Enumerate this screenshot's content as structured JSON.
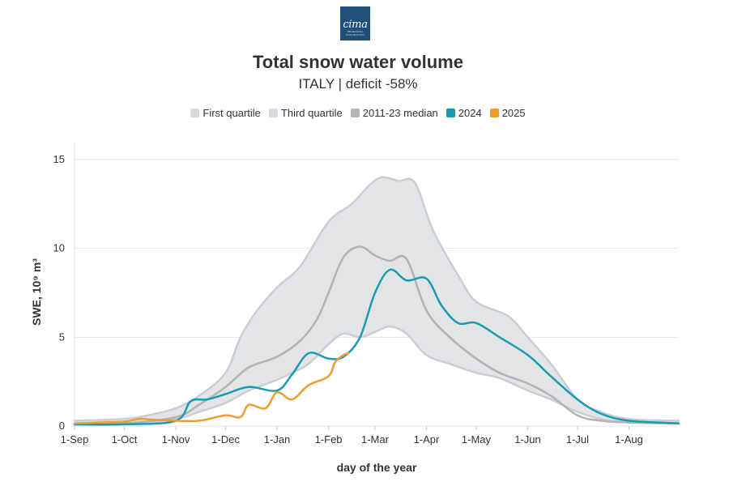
{
  "logo": {
    "text": "cima",
    "subtext": "RESEARCH FOUNDATION"
  },
  "chart_data": {
    "type": "area",
    "title": "Total snow water volume",
    "subtitle": "ITALY | deficit -58%",
    "xlabel": "day of the year",
    "ylabel": "SWE, 10⁹ m³",
    "ylim": [
      0,
      15
    ],
    "yticks": [
      0,
      5,
      10,
      15
    ],
    "xlim": [
      "1-Sep",
      "31-Aug"
    ],
    "xticks": [
      "1-Sep",
      "1-Oct",
      "1-Nov",
      "1-Dec",
      "1-Jan",
      "1-Feb",
      "1-Mar",
      "1-Apr",
      "1-May",
      "1-Jun",
      "1-Jul",
      "1-Aug"
    ],
    "grid": true,
    "legend_position": "top",
    "legend": [
      "First quartile",
      "Third quartile",
      "2011-23 median",
      "2024",
      "2025"
    ],
    "series": [
      {
        "name": "First quartile",
        "color": "#c8cdd6",
        "points": [
          [
            "1-Sep",
            0.05
          ],
          [
            "1-Oct",
            0.1
          ],
          [
            "1-Nov",
            0.4
          ],
          [
            "15-Nov",
            0.8
          ],
          [
            "1-Dec",
            1.3
          ],
          [
            "15-Dec",
            2.0
          ],
          [
            "1-Jan",
            2.6
          ],
          [
            "10-Jan",
            3.0
          ],
          [
            "20-Jan",
            3.5
          ],
          [
            "1-Feb",
            4.6
          ],
          [
            "10-Feb",
            5.2
          ],
          [
            "20-Feb",
            5.0
          ],
          [
            "1-Mar",
            5.3
          ],
          [
            "10-Mar",
            5.6
          ],
          [
            "20-Mar",
            5.2
          ],
          [
            "1-Apr",
            4.0
          ],
          [
            "15-Apr",
            3.5
          ],
          [
            "1-May",
            3.0
          ],
          [
            "15-May",
            2.7
          ],
          [
            "1-Jun",
            2.0
          ],
          [
            "15-Jun",
            1.5
          ],
          [
            "1-Jul",
            0.8
          ],
          [
            "15-Jul",
            0.4
          ],
          [
            "1-Aug",
            0.2
          ],
          [
            "31-Aug",
            0.15
          ]
        ]
      },
      {
        "name": "Third quartile",
        "color": "#c8cdd6",
        "points": [
          [
            "1-Sep",
            0.3
          ],
          [
            "1-Oct",
            0.4
          ],
          [
            "15-Oct",
            0.6
          ],
          [
            "1-Nov",
            1.0
          ],
          [
            "15-Nov",
            1.7
          ],
          [
            "1-Dec",
            3.0
          ],
          [
            "10-Dec",
            5.0
          ],
          [
            "20-Dec",
            6.5
          ],
          [
            "1-Jan",
            7.8
          ],
          [
            "15-Jan",
            9.0
          ],
          [
            "1-Feb",
            11.5
          ],
          [
            "15-Feb",
            12.5
          ],
          [
            "25-Feb",
            13.5
          ],
          [
            "5-Mar",
            14.0
          ],
          [
            "15-Mar",
            13.8
          ],
          [
            "25-Mar",
            13.7
          ],
          [
            "5-Apr",
            11.0
          ],
          [
            "20-Apr",
            8.5
          ],
          [
            "1-May",
            7.0
          ],
          [
            "20-May",
            6.2
          ],
          [
            "1-Jun",
            5.0
          ],
          [
            "15-Jun",
            3.5
          ],
          [
            "1-Jul",
            1.5
          ],
          [
            "15-Jul",
            0.8
          ],
          [
            "1-Aug",
            0.4
          ],
          [
            "31-Aug",
            0.3
          ]
        ]
      },
      {
        "name": "2011-23 median",
        "color": "#b3b3b3",
        "points": [
          [
            "1-Sep",
            0.1
          ],
          [
            "1-Oct",
            0.15
          ],
          [
            "1-Nov",
            0.5
          ],
          [
            "15-Nov",
            1.2
          ],
          [
            "1-Dec",
            2.2
          ],
          [
            "15-Dec",
            3.3
          ],
          [
            "1-Jan",
            3.9
          ],
          [
            "15-Jan",
            4.8
          ],
          [
            "25-Jan",
            6.0
          ],
          [
            "1-Feb",
            7.5
          ],
          [
            "10-Feb",
            9.5
          ],
          [
            "20-Feb",
            10.1
          ],
          [
            "1-Mar",
            9.6
          ],
          [
            "10-Mar",
            9.3
          ],
          [
            "20-Mar",
            9.4
          ],
          [
            "1-Apr",
            6.5
          ],
          [
            "15-Apr",
            5.0
          ],
          [
            "1-May",
            3.8
          ],
          [
            "15-May",
            3.0
          ],
          [
            "1-Jun",
            2.4
          ],
          [
            "15-Jun",
            1.7
          ],
          [
            "1-Jul",
            0.6
          ],
          [
            "15-Jul",
            0.3
          ],
          [
            "1-Aug",
            0.2
          ],
          [
            "31-Aug",
            0.15
          ]
        ]
      },
      {
        "name": "2024",
        "color": "#1a9bb4",
        "points": [
          [
            "1-Sep",
            0.1
          ],
          [
            "1-Oct",
            0.1
          ],
          [
            "1-Nov",
            0.3
          ],
          [
            "10-Nov",
            1.4
          ],
          [
            "20-Nov",
            1.5
          ],
          [
            "1-Dec",
            1.8
          ],
          [
            "15-Dec",
            2.2
          ],
          [
            "1-Jan",
            2.0
          ],
          [
            "10-Jan",
            2.9
          ],
          [
            "20-Jan",
            4.1
          ],
          [
            "1-Feb",
            3.8
          ],
          [
            "10-Feb",
            3.9
          ],
          [
            "20-Feb",
            5.0
          ],
          [
            "1-Mar",
            7.5
          ],
          [
            "10-Mar",
            8.8
          ],
          [
            "20-Mar",
            8.2
          ],
          [
            "1-Apr",
            8.3
          ],
          [
            "10-Apr",
            6.8
          ],
          [
            "20-Apr",
            5.8
          ],
          [
            "1-May",
            5.8
          ],
          [
            "15-May",
            5.0
          ],
          [
            "1-Jun",
            4.0
          ],
          [
            "15-Jun",
            2.8
          ],
          [
            "1-Jul",
            1.5
          ],
          [
            "15-Jul",
            0.7
          ],
          [
            "1-Aug",
            0.3
          ],
          [
            "31-Aug",
            0.15
          ]
        ]
      },
      {
        "name": "2025",
        "color": "#f39c2e",
        "points": [
          [
            "1-Sep",
            0.15
          ],
          [
            "15-Sep",
            0.2
          ],
          [
            "1-Oct",
            0.25
          ],
          [
            "10-Oct",
            0.4
          ],
          [
            "20-Oct",
            0.35
          ],
          [
            "1-Nov",
            0.3
          ],
          [
            "15-Nov",
            0.3
          ],
          [
            "1-Dec",
            0.6
          ],
          [
            "10-Dec",
            0.5
          ],
          [
            "15-Dec",
            1.2
          ],
          [
            "25-Dec",
            1.0
          ],
          [
            "1-Jan",
            1.9
          ],
          [
            "10-Jan",
            1.5
          ],
          [
            "20-Jan",
            2.3
          ],
          [
            "1-Feb",
            2.8
          ],
          [
            "5-Feb",
            3.6
          ],
          [
            "10-Feb",
            4.0
          ],
          [
            "13-Feb",
            4.1
          ]
        ]
      }
    ]
  }
}
